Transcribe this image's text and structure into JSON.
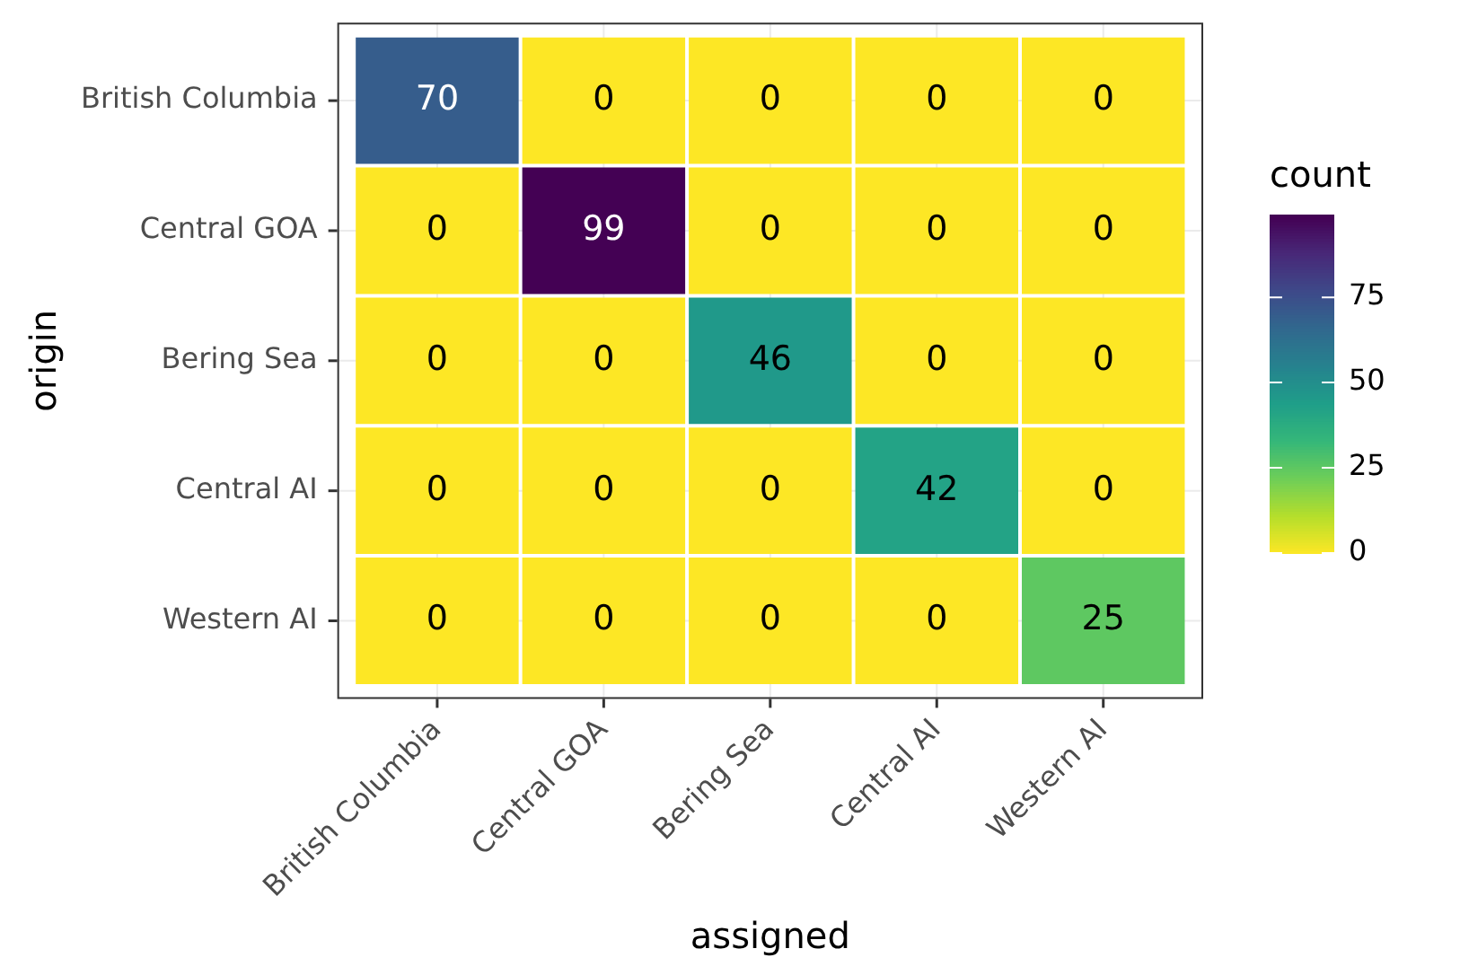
{
  "chart_data": {
    "type": "heatmap",
    "xlabel": "assigned",
    "ylabel": "origin",
    "clabel": "count",
    "categories": [
      "British Columbia",
      "Central GOA",
      "Bering Sea",
      "Central AI",
      "Western AI"
    ],
    "y_categories": [
      "British Columbia",
      "Central GOA",
      "Bering Sea",
      "Central AI",
      "Western AI"
    ],
    "cells": [
      [
        70,
        0,
        0,
        0,
        0
      ],
      [
        0,
        99,
        0,
        0,
        0
      ],
      [
        0,
        0,
        46,
        0,
        0
      ],
      [
        0,
        0,
        0,
        42,
        0
      ],
      [
        0,
        0,
        0,
        0,
        25
      ]
    ],
    "clim": [
      0,
      99
    ],
    "cticks": [
      0,
      25,
      50,
      75
    ],
    "data_labels": true,
    "grid": true
  }
}
